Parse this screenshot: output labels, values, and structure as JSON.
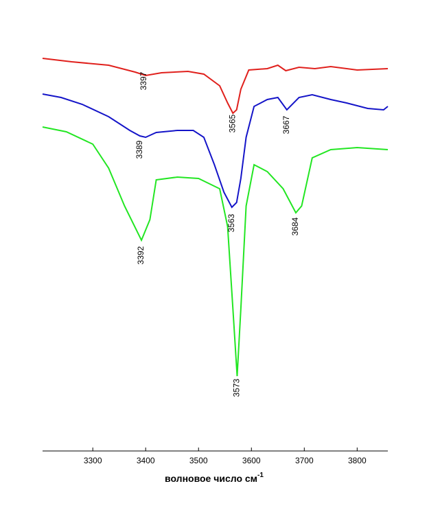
{
  "chart_data": {
    "type": "line",
    "xlim": [
      3205,
      3858
    ],
    "ylim": [
      0,
      657
    ],
    "xticks": [
      3300,
      3400,
      3500,
      3600,
      3700,
      3800
    ],
    "xlabel": "волновое число см",
    "xlabel_superscript": "-1",
    "series": [
      {
        "color": "#e0201c",
        "x": [
          3205,
          3260,
          3330,
          3380,
          3400,
          3430,
          3480,
          3510,
          3540,
          3555,
          3565,
          3572,
          3580,
          3595,
          3630,
          3650,
          3665,
          3690,
          3720,
          3750,
          3800,
          3858
        ],
        "values": [
          572,
          567,
          562,
          552,
          547,
          551,
          553,
          549,
          532,
          507,
          492,
          497,
          527,
          555,
          557,
          562,
          554,
          559,
          557,
          560,
          555,
          557
        ]
      },
      {
        "color": "#1414c8",
        "x": [
          3205,
          3240,
          3280,
          3330,
          3370,
          3389,
          3400,
          3420,
          3460,
          3490,
          3510,
          3530,
          3548,
          3563,
          3572,
          3580,
          3590,
          3605,
          3630,
          3650,
          3667,
          3690,
          3715,
          3750,
          3780,
          3820,
          3850,
          3858
        ],
        "values": [
          520,
          515,
          505,
          487,
          467,
          459,
          457,
          464,
          467,
          467,
          457,
          417,
          377,
          355,
          362,
          397,
          457,
          502,
          512,
          515,
          497,
          515,
          519,
          512,
          507,
          499,
          497,
          502
        ]
      },
      {
        "color": "#22e622",
        "x": [
          3205,
          3250,
          3300,
          3330,
          3360,
          3392,
          3408,
          3420,
          3460,
          3500,
          3540,
          3555,
          3565,
          3573,
          3580,
          3590,
          3605,
          3630,
          3660,
          3684,
          3695,
          3715,
          3750,
          3800,
          3858
        ],
        "values": [
          472,
          465,
          447,
          412,
          357,
          307,
          337,
          395,
          399,
          397,
          382,
          327,
          207,
          109,
          207,
          357,
          417,
          407,
          382,
          347,
          357,
          427,
          439,
          442,
          439
        ]
      }
    ],
    "annotations": [
      {
        "text": "3397",
        "x": 3397,
        "y": 539
      },
      {
        "text": "3565",
        "x": 3565,
        "y": 477
      },
      {
        "text": "3667",
        "x": 3667,
        "y": 475
      },
      {
        "text": "3389",
        "x": 3389,
        "y": 439
      },
      {
        "text": "3563",
        "x": 3563,
        "y": 332
      },
      {
        "text": "3684",
        "x": 3684,
        "y": 327
      },
      {
        "text": "3392",
        "x": 3392,
        "y": 285
      },
      {
        "text": "3573",
        "x": 3573,
        "y": 92
      }
    ]
  }
}
